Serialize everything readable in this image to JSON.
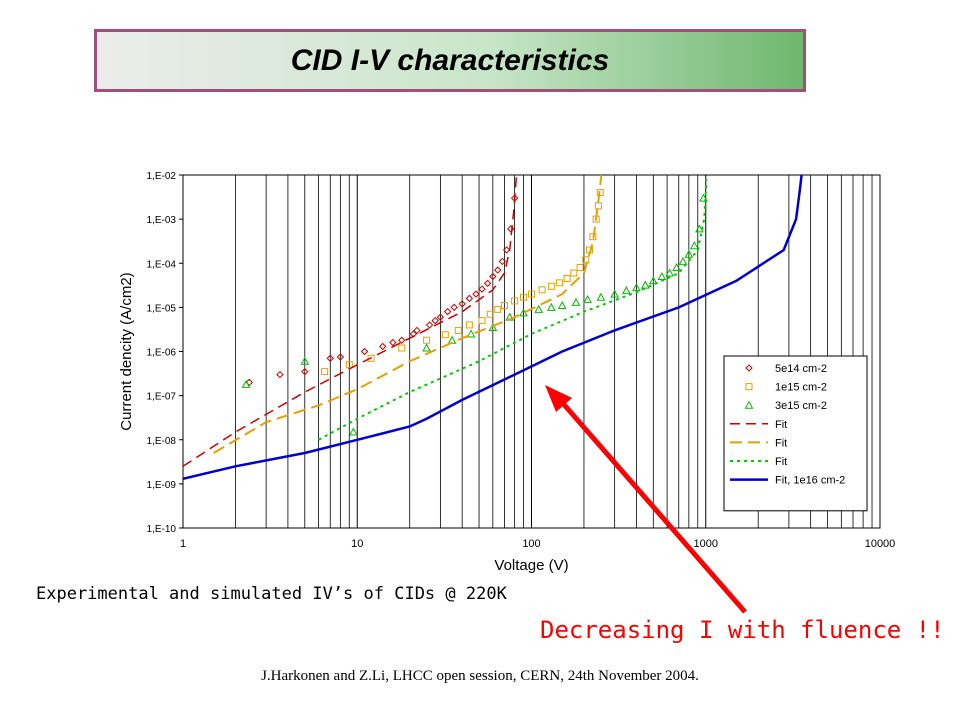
{
  "slide": {
    "title": "CID I-V characteristics",
    "caption": "Experimental and simulated IV’s of CIDs @ 220K",
    "callout": "Decreasing I with fluence !!",
    "credit": "J.Harkonen and Z.Li, LHCC open session, CERN, 24th November 2004.",
    "arrow_color": "#ff0000"
  },
  "chart_data": {
    "type": "scatter",
    "title": "",
    "xlabel": "Voltage (V)",
    "ylabel": "Current dencity (A/cm2)",
    "xscale": "log",
    "yscale": "log",
    "xlim": [
      1,
      10000
    ],
    "ylim": [
      1e-10,
      0.01
    ],
    "xticks": [
      1,
      10,
      100,
      1000,
      10000
    ],
    "xtick_labels": [
      "1",
      "10",
      "100",
      "1000",
      "10000"
    ],
    "yticks": [
      1e-10,
      1e-09,
      1e-08,
      1e-07,
      1e-06,
      1e-05,
      0.0001,
      0.001,
      0.01
    ],
    "ytick_labels": [
      "1,E-10",
      "1,E-09",
      "1,E-08",
      "1,E-07",
      "1,E-06",
      "1,E-05",
      "1,E-04",
      "1,E-03",
      "1,E-02"
    ],
    "grid": "vertical minor and major lines",
    "legend_position": "bottom-right",
    "series": [
      {
        "name": "5e14 cm-2",
        "kind": "marker",
        "marker": "diamond",
        "color": "#cc0000",
        "x": [
          2.4,
          3.6,
          5,
          7,
          8,
          11,
          14,
          16,
          18,
          21,
          22,
          26,
          28,
          30,
          33,
          36,
          40,
          44,
          48,
          52,
          56,
          60,
          64,
          68,
          72,
          76,
          80
        ],
        "y": [
          2e-07,
          3e-07,
          3.5e-07,
          7e-07,
          7.5e-07,
          1e-06,
          1.3e-06,
          1.6e-06,
          1.8e-06,
          2.5e-06,
          3e-06,
          4e-06,
          5e-06,
          6e-06,
          8e-06,
          1e-05,
          1.2e-05,
          1.6e-05,
          2e-05,
          2.6e-05,
          3.5e-05,
          5e-05,
          7e-05,
          0.00011,
          0.0002,
          0.0006,
          0.003
        ]
      },
      {
        "name": "1e15 cm-2",
        "kind": "marker",
        "marker": "square",
        "color": "#e8a000",
        "x": [
          6.5,
          9,
          12,
          18,
          25,
          32,
          38,
          44,
          52,
          58,
          64,
          70,
          80,
          90,
          100,
          115,
          130,
          145,
          160,
          175,
          190,
          205,
          215,
          225,
          235,
          242,
          248
        ],
        "y": [
          3.5e-07,
          5e-07,
          7e-07,
          1.2e-06,
          1.8e-06,
          2.4e-06,
          3e-06,
          4e-06,
          5e-06,
          7e-06,
          9e-06,
          1.1e-05,
          1.4e-05,
          1.7e-05,
          2e-05,
          2.5e-05,
          3e-05,
          3.6e-05,
          4.5e-05,
          6e-05,
          8e-05,
          0.00012,
          0.0002,
          0.0004,
          0.001,
          0.002,
          0.004
        ]
      },
      {
        "name": "3e15 cm-2",
        "kind": "marker",
        "marker": "triangle",
        "color": "#00bb00",
        "x": [
          2.3,
          5,
          9.5,
          25,
          35,
          45,
          60,
          75,
          90,
          110,
          130,
          150,
          180,
          210,
          250,
          300,
          350,
          400,
          450,
          500,
          560,
          620,
          680,
          740,
          800,
          860,
          920,
          970
        ],
        "y": [
          1.8e-07,
          6e-07,
          1.5e-08,
          1.2e-06,
          1.8e-06,
          2.5e-06,
          3.5e-06,
          6e-06,
          7.5e-06,
          9e-06,
          1e-05,
          1.1e-05,
          1.3e-05,
          1.5e-05,
          1.7e-05,
          2e-05,
          2.4e-05,
          2.8e-05,
          3.2e-05,
          4e-05,
          5e-05,
          6e-05,
          8e-05,
          0.00011,
          0.00016,
          0.00025,
          0.0006,
          0.003
        ]
      },
      {
        "name": "Fit",
        "kind": "line",
        "dash": "long-dash",
        "color": "#cc0000",
        "width": 1.5,
        "x": [
          1,
          2,
          5,
          10,
          20,
          40,
          60,
          70,
          75,
          79,
          82
        ],
        "y": [
          2.5e-09,
          1.5e-08,
          1.2e-07,
          5e-07,
          2e-06,
          8e-06,
          2.5e-05,
          6e-05,
          0.0002,
          0.0015,
          0.01
        ]
      },
      {
        "name": "Fit",
        "kind": "line",
        "dash": "dash",
        "color": "#e8a000",
        "width": 2,
        "x": [
          1.5,
          3,
          6,
          10,
          20,
          40,
          80,
          150,
          200,
          225,
          240,
          252
        ],
        "y": [
          5e-09,
          2.5e-08,
          6e-08,
          1.4e-07,
          6e-07,
          2e-06,
          6e-06,
          2e-05,
          6e-05,
          0.0003,
          0.002,
          0.01
        ]
      },
      {
        "name": "Fit",
        "kind": "line",
        "dash": "dot",
        "color": "#00cc00",
        "width": 2,
        "x": [
          6,
          10,
          20,
          50,
          100,
          200,
          400,
          700,
          900,
          980,
          1010
        ],
        "y": [
          1e-08,
          3e-08,
          1.2e-07,
          6e-07,
          2.5e-06,
          8e-06,
          2.2e-05,
          6e-05,
          0.0002,
          0.001,
          0.008
        ]
      },
      {
        "name": "Fit, 1e16 cm-2",
        "kind": "line",
        "dash": "solid",
        "color": "#0000cc",
        "width": 2.5,
        "x": [
          1,
          2,
          5,
          10,
          20,
          25,
          40,
          80,
          150,
          300,
          700,
          1500,
          2800,
          3300,
          3450,
          3550
        ],
        "y": [
          1.3e-09,
          2.5e-09,
          5e-09,
          1e-08,
          2e-08,
          3e-08,
          8e-08,
          3e-07,
          1e-06,
          3e-06,
          1e-05,
          4e-05,
          0.0002,
          0.001,
          0.004,
          0.01
        ]
      }
    ]
  }
}
